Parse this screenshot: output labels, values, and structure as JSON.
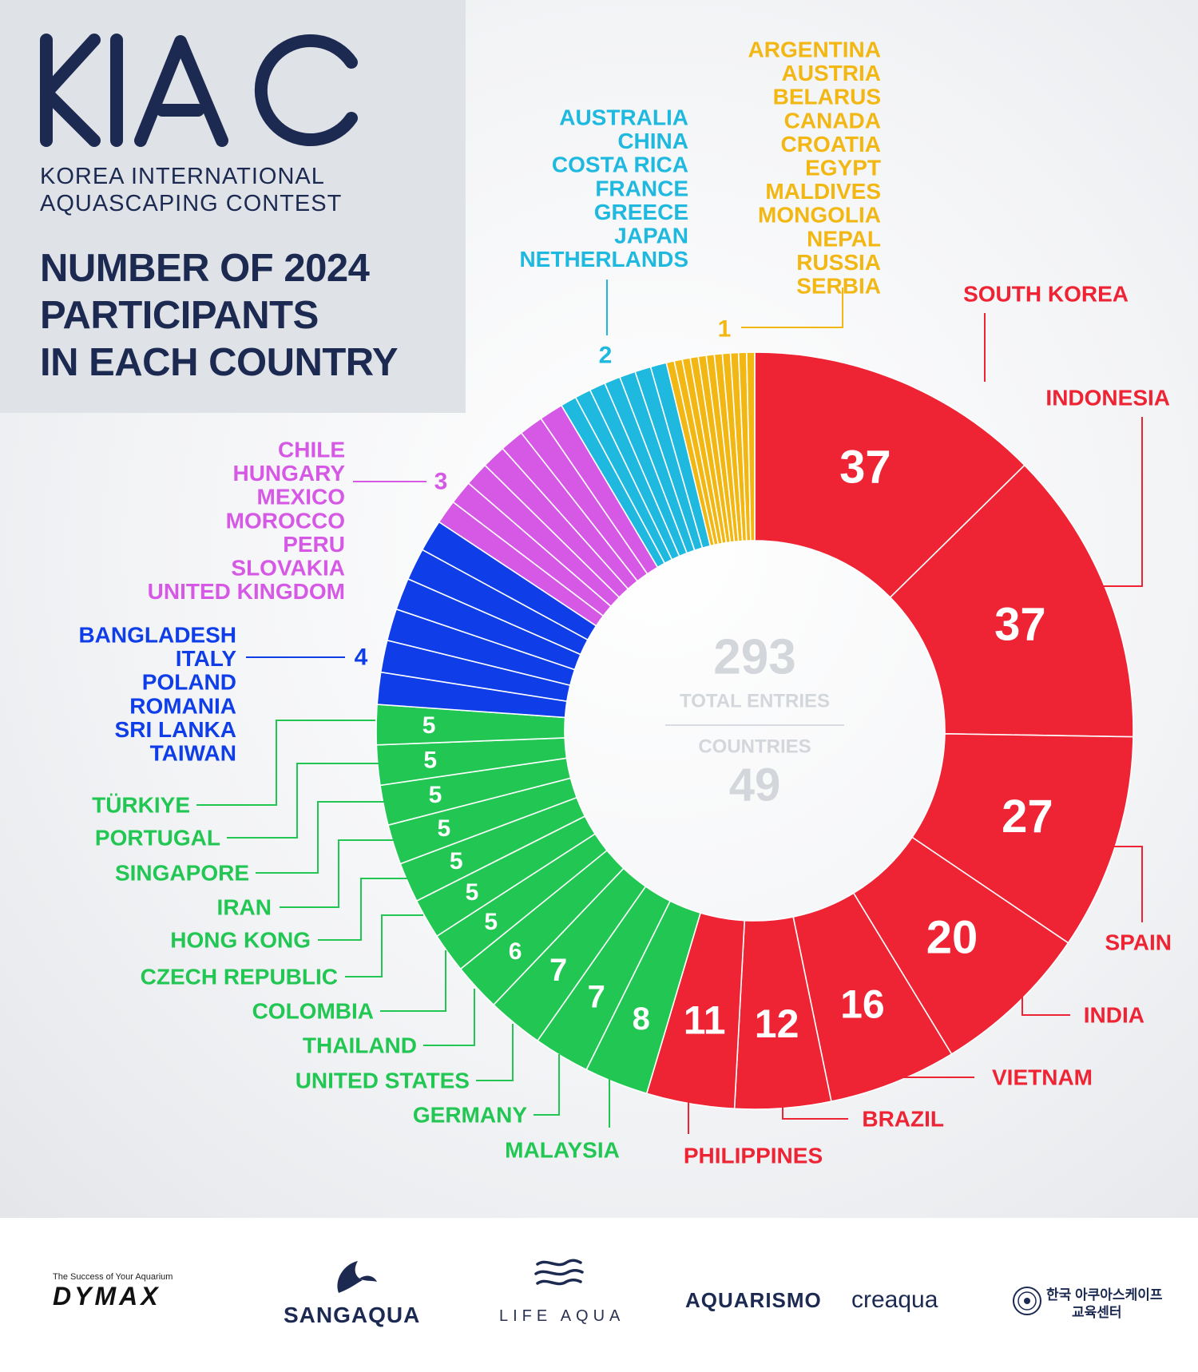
{
  "header": {
    "logo_text": "KIAC",
    "subtitle_lines": [
      "KOREA INTERNATIONAL",
      "AQUASCAPING CONTEST"
    ],
    "title_lines": [
      "NUMBER OF 2024",
      "PARTICIPANTS",
      "IN EACH COUNTRY"
    ]
  },
  "center": {
    "total_value": "293",
    "total_label": "TOTAL ENTRIES",
    "countries_label": "COUNTRIES",
    "countries_value": "49"
  },
  "colors": {
    "red": "#ee2334",
    "green": "#21c752",
    "blue": "#0f3ee8",
    "magenta": "#d659e6",
    "cyan": "#1fb9df",
    "yellow": "#f2b713",
    "navy": "#1c2a52",
    "center_text": "#d3d6da"
  },
  "chart_data": {
    "type": "pie",
    "variant": "donut",
    "title": "NUMBER OF 2024 PARTICIPANTS IN EACH COUNTRY",
    "total": 293,
    "countries_count": 49,
    "slices": [
      {
        "label": "SOUTH KOREA",
        "value": 37,
        "group": "red"
      },
      {
        "label": "INDONESIA",
        "value": 37,
        "group": "red"
      },
      {
        "label": "SPAIN",
        "value": 27,
        "group": "red"
      },
      {
        "label": "INDIA",
        "value": 20,
        "group": "red"
      },
      {
        "label": "VIETNAM",
        "value": 16,
        "group": "red"
      },
      {
        "label": "BRAZIL",
        "value": 12,
        "group": "red"
      },
      {
        "label": "PHILIPPINES",
        "value": 11,
        "group": "red"
      },
      {
        "label": "MALAYSIA",
        "value": 8,
        "group": "green"
      },
      {
        "label": "GERMANY",
        "value": 7,
        "group": "green"
      },
      {
        "label": "UNITED STATES",
        "value": 7,
        "group": "green"
      },
      {
        "label": "THAILAND",
        "value": 6,
        "group": "green"
      },
      {
        "label": "COLOMBIA",
        "value": 5,
        "group": "green"
      },
      {
        "label": "CZECH REPUBLIC",
        "value": 5,
        "group": "green"
      },
      {
        "label": "HONG KONG",
        "value": 5,
        "group": "green"
      },
      {
        "label": "IRAN",
        "value": 5,
        "group": "green"
      },
      {
        "label": "SINGAPORE",
        "value": 5,
        "group": "green"
      },
      {
        "label": "PORTUGAL",
        "value": 5,
        "group": "green"
      },
      {
        "label": "TÜRKIYE",
        "value": 5,
        "group": "green"
      }
    ],
    "grouped_slices": [
      {
        "value": 4,
        "group": "blue",
        "countries": [
          "BANGLADESH",
          "ITALY",
          "POLAND",
          "ROMANIA",
          "SRI LANKA",
          "TAIWAN"
        ]
      },
      {
        "value": 3,
        "group": "magenta",
        "countries": [
          "CHILE",
          "HUNGARY",
          "MEXICO",
          "MOROCCO",
          "PERU",
          "SLOVAKIA",
          "UNITED KINGDOM"
        ]
      },
      {
        "value": 2,
        "group": "cyan",
        "countries": [
          "AUSTRALIA",
          "CHINA",
          "COSTA RICA",
          "FRANCE",
          "GREECE",
          "JAPAN",
          "NETHERLANDS"
        ]
      },
      {
        "value": 1,
        "group": "yellow",
        "countries": [
          "ARGENTINA",
          "AUSTRIA",
          "BELARUS",
          "CANADA",
          "CROATIA",
          "EGYPT",
          "MALDIVES",
          "MONGOLIA",
          "NEPAL",
          "RUSSIA",
          "SERBIA"
        ]
      }
    ]
  },
  "sponsors": {
    "dymax_tagline": "The Success of Your Aquarium",
    "dymax": "DYMAX",
    "sangaqua": "SANGAQUA",
    "lifeaqua": "LIFE AQUA",
    "aquarismo": "AQUARISMO",
    "creaqua": "creaqua",
    "korea_center_line1": "한국 아쿠아스케이프",
    "korea_center_line2": "교육센터"
  }
}
